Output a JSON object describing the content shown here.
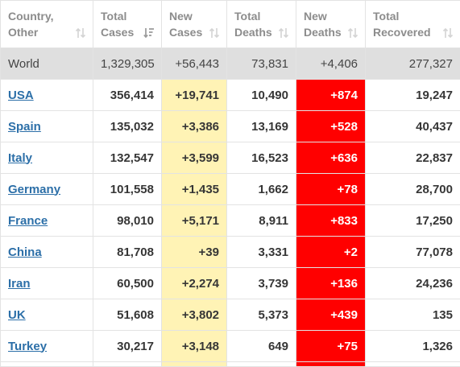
{
  "headers": {
    "country": [
      "Country,",
      "Other"
    ],
    "total_cases": [
      "Total",
      "Cases"
    ],
    "new_cases": [
      "New",
      "Cases"
    ],
    "total_deaths": [
      "Total",
      "Deaths"
    ],
    "new_deaths": [
      "New",
      "Deaths"
    ],
    "total_recovered": [
      "Total",
      "Recovered"
    ]
  },
  "world": {
    "name": "World",
    "total_cases": "1,329,305",
    "new_cases": "+56,443",
    "total_deaths": "73,831",
    "new_deaths": "+4,406",
    "total_recovered": "277,327"
  },
  "rows": [
    {
      "name": "USA",
      "total_cases": "356,414",
      "new_cases": "+19,741",
      "total_deaths": "10,490",
      "new_deaths": "+874",
      "total_recovered": "19,247"
    },
    {
      "name": "Spain",
      "total_cases": "135,032",
      "new_cases": "+3,386",
      "total_deaths": "13,169",
      "new_deaths": "+528",
      "total_recovered": "40,437"
    },
    {
      "name": "Italy",
      "total_cases": "132,547",
      "new_cases": "+3,599",
      "total_deaths": "16,523",
      "new_deaths": "+636",
      "total_recovered": "22,837"
    },
    {
      "name": "Germany",
      "total_cases": "101,558",
      "new_cases": "+1,435",
      "total_deaths": "1,662",
      "new_deaths": "+78",
      "total_recovered": "28,700"
    },
    {
      "name": "France",
      "total_cases": "98,010",
      "new_cases": "+5,171",
      "total_deaths": "8,911",
      "new_deaths": "+833",
      "total_recovered": "17,250"
    },
    {
      "name": "China",
      "total_cases": "81,708",
      "new_cases": "+39",
      "total_deaths": "3,331",
      "new_deaths": "+2",
      "total_recovered": "77,078"
    },
    {
      "name": "Iran",
      "total_cases": "60,500",
      "new_cases": "+2,274",
      "total_deaths": "3,739",
      "new_deaths": "+136",
      "total_recovered": "24,236"
    },
    {
      "name": "UK",
      "total_cases": "51,608",
      "new_cases": "+3,802",
      "total_deaths": "5,373",
      "new_deaths": "+439",
      "total_recovered": "135"
    },
    {
      "name": "Turkey",
      "total_cases": "30,217",
      "new_cases": "+3,148",
      "total_deaths": "649",
      "new_deaths": "+75",
      "total_recovered": "1,326"
    }
  ],
  "colors": {
    "new_cases_bg": "#fff3b5",
    "new_deaths_bg": "#ff0000",
    "world_row_bg": "#dfdfdf",
    "link": "#2c6fa8"
  },
  "icons": {
    "sort_unsorted": "sort-arrows-icon",
    "sort_active": "sort-descending-icon"
  }
}
